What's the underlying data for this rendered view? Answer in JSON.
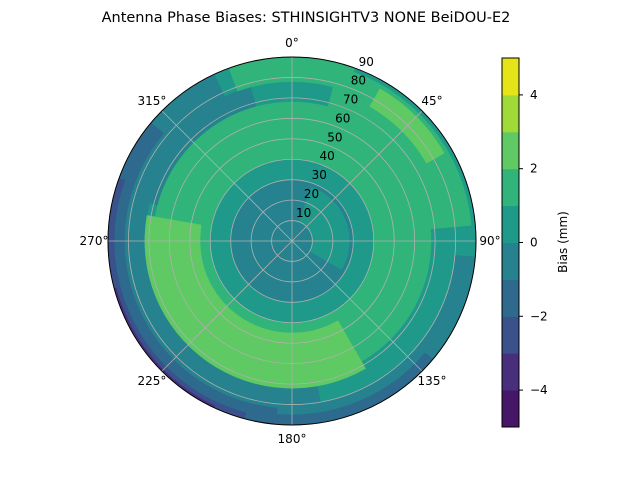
{
  "chart_data": {
    "type": "polar-contour",
    "title": "Antenna Phase Biases: STHINSIGHTV3    NONE BeiDOU-E2",
    "colorbar_label": "Bias (mm)",
    "levels": [
      -5,
      -4,
      -3,
      -2,
      -1,
      0,
      1,
      2,
      3,
      4,
      5
    ],
    "level_colors": [
      "#461669",
      "#472f7d",
      "#3b518b",
      "#2e6a8e",
      "#26828e",
      "#1f9a8a",
      "#30b47a",
      "#5fc963",
      "#a0da39",
      "#e5e419"
    ],
    "colorbar_ticks": [
      -4,
      -2,
      0,
      2,
      4
    ],
    "colorbar_tick_labels": [
      "−4",
      "−2",
      "0",
      "2",
      "4"
    ],
    "angle_ticks": [
      0,
      45,
      90,
      135,
      180,
      225,
      270,
      315
    ],
    "angle_tick_labels": [
      "0°",
      "45°",
      "90°",
      "135°",
      "180°",
      "225°",
      "270°",
      "315°"
    ],
    "radial_ticks": [
      10,
      20,
      30,
      40,
      50,
      60,
      70,
      80,
      90
    ],
    "radial_tick_labels": [
      "10",
      "20",
      "30",
      "40",
      "50",
      "60",
      "70",
      "80",
      "90"
    ],
    "r_max": 90,
    "theta_zero": "N",
    "theta_direction": "clockwise",
    "grid": true,
    "regions": [
      {
        "level": 5,
        "az": [
          0,
          360
        ],
        "r": [
          0,
          90
        ]
      },
      {
        "level": 4,
        "az": [
          170,
          335
        ],
        "r": [
          72,
          90
        ]
      },
      {
        "level": 4,
        "az": [
          285,
          345
        ],
        "r": [
          55,
          78
        ]
      },
      {
        "level": 4,
        "az": [
          95,
          175
        ],
        "r": [
          80,
          90
        ]
      },
      {
        "level": 3,
        "az": [
          185,
          310
        ],
        "r": [
          82,
          90
        ]
      },
      {
        "level": 3,
        "az": [
          130,
          185
        ],
        "r": [
          85,
          90
        ]
      },
      {
        "level": 2,
        "az": [
          195,
          290
        ],
        "r": [
          87,
          90
        ]
      },
      {
        "level": 1,
        "az": [
          205,
          255
        ],
        "r": [
          89,
          90
        ]
      },
      {
        "level": 6,
        "az": [
          0,
          360
        ],
        "r": [
          38,
          68
        ]
      },
      {
        "level": 6,
        "az": [
          15,
          85
        ],
        "r": [
          68,
          88
        ]
      },
      {
        "level": 6,
        "az": [
          340,
          380
        ],
        "r": [
          78,
          90
        ]
      },
      {
        "level": 7,
        "az": [
          30,
          60
        ],
        "r": [
          76,
          86
        ]
      },
      {
        "level": 7,
        "az": [
          150,
          280
        ],
        "r": [
          45,
          72
        ]
      },
      {
        "level": 5,
        "az": [
          0,
          360
        ],
        "r": [
          28,
          40
        ]
      },
      {
        "level": 4,
        "az": [
          0,
          360
        ],
        "r": [
          0,
          30
        ]
      },
      {
        "level": 5,
        "az": [
          20,
          120
        ],
        "r": [
          10,
          28
        ]
      }
    ]
  }
}
